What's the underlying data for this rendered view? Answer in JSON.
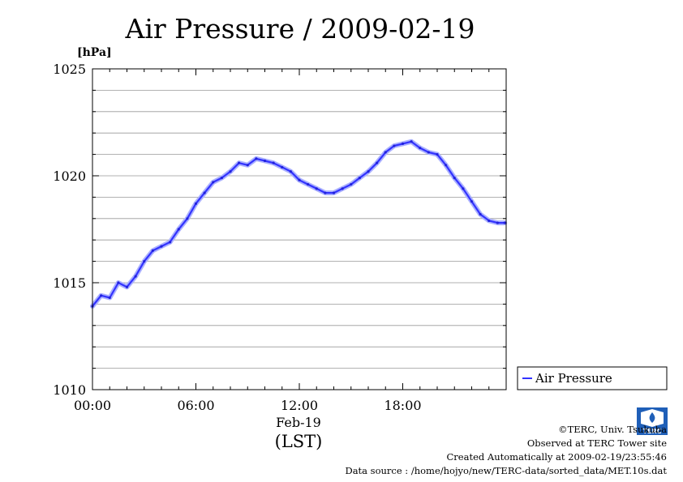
{
  "chart_data": {
    "type": "line",
    "title": "Air Pressure / 2009-02-19",
    "yunit": "[hPa]",
    "xlabel_date": "Feb-19",
    "xlabel_tz": "(LST)",
    "ylim": [
      1010,
      1025
    ],
    "xlim": [
      "2009-02-19 00:00",
      "2009-02-20 00:00"
    ],
    "yticks": [
      "1010",
      "1015",
      "1020",
      "1025"
    ],
    "xticks": [
      "00:00",
      "06:00",
      "12:00",
      "18:00"
    ],
    "grid": true,
    "legend_position": "right",
    "line_color": "#3333ff",
    "series": [
      {
        "name": "Air Pressure",
        "x": [
          "00:00",
          "00:30",
          "01:00",
          "01:30",
          "02:00",
          "02:30",
          "03:00",
          "03:30",
          "04:00",
          "04:30",
          "05:00",
          "05:30",
          "06:00",
          "06:30",
          "07:00",
          "07:30",
          "08:00",
          "08:30",
          "09:00",
          "09:30",
          "10:00",
          "10:30",
          "11:00",
          "11:30",
          "12:00",
          "12:30",
          "13:00",
          "13:30",
          "14:00",
          "14:30",
          "15:00",
          "15:30",
          "16:00",
          "16:30",
          "17:00",
          "17:30",
          "18:00",
          "18:30",
          "19:00",
          "19:30",
          "20:00",
          "20:30",
          "21:00",
          "21:30",
          "22:00",
          "22:30",
          "23:00",
          "23:30",
          "23:55"
        ],
        "values": [
          1013.9,
          1014.4,
          1014.3,
          1015.0,
          1014.8,
          1015.3,
          1016.0,
          1016.5,
          1016.7,
          1016.9,
          1017.5,
          1018.0,
          1018.7,
          1019.2,
          1019.7,
          1019.9,
          1020.2,
          1020.6,
          1020.5,
          1020.8,
          1020.7,
          1020.6,
          1020.4,
          1020.2,
          1019.8,
          1019.6,
          1019.4,
          1019.2,
          1019.2,
          1019.4,
          1019.6,
          1019.9,
          1020.2,
          1020.6,
          1021.1,
          1021.4,
          1021.5,
          1021.6,
          1021.3,
          1021.1,
          1021.0,
          1020.5,
          1019.9,
          1019.4,
          1018.8,
          1018.2,
          1017.9,
          1017.8,
          1017.8
        ]
      }
    ]
  },
  "credits": {
    "copyright": "©TERC, Univ. Tsukuba",
    "observed": "Observed at TERC Tower site",
    "created": "Created Automatically at 2009-02-19/23:55:46",
    "source": "Data source : /home/hojyo/new/TERC-data/sorted_data/MET.10s.dat",
    "logo_text": "TERC"
  }
}
